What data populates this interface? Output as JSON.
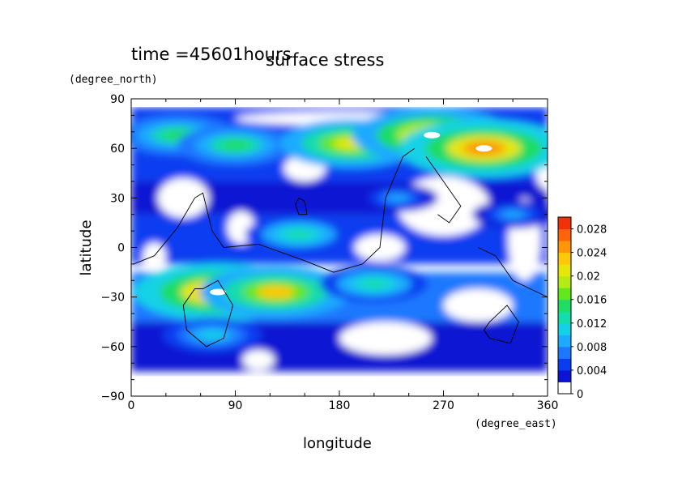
{
  "chart_data": {
    "type": "heatmap",
    "time_label": "time =45601hours",
    "title": "surface stress",
    "xlabel": "longitude",
    "ylabel": "latitude",
    "x_unit": "(degree_east)",
    "y_unit": "(degree_north)",
    "xlim": [
      0,
      360
    ],
    "ylim": [
      -90,
      90
    ],
    "x_ticks": [
      "0",
      "90",
      "180",
      "270",
      "360"
    ],
    "y_ticks": [
      "90",
      "60",
      "30",
      "0",
      "−30",
      "−60",
      "−90"
    ],
    "x_tick_values": [
      0,
      90,
      180,
      270,
      360
    ],
    "y_tick_values": [
      90,
      60,
      30,
      0,
      -30,
      -60,
      -90
    ],
    "grid": false,
    "colorbar": {
      "min": 0,
      "max": 0.03,
      "tick_values": [
        0,
        0.004,
        0.008,
        0.012,
        0.016,
        0.02,
        0.024,
        0.028
      ],
      "tick_labels": [
        "0",
        "0.004",
        "0.008",
        "0.012",
        "0.016",
        "0.02",
        "0.024",
        "0.028"
      ],
      "colors": [
        "#ffffff",
        "#0a14d2",
        "#0a3cf0",
        "#1e78ff",
        "#1eaaff",
        "#14d2e6",
        "#14dcaa",
        "#1edc64",
        "#64e61e",
        "#b4eb14",
        "#e6e60a",
        "#ffc80a",
        "#ff960a",
        "#ff640a",
        "#f0320a"
      ]
    },
    "series": [
      {
        "lon": 40,
        "lat": 68,
        "value": 0.016
      },
      {
        "lon": 90,
        "lat": 62,
        "value": 0.016
      },
      {
        "lon": 190,
        "lat": 63,
        "value": 0.022
      },
      {
        "lon": 260,
        "lat": 68,
        "value": 0.026
      },
      {
        "lon": 305,
        "lat": 60,
        "value": 0.028
      },
      {
        "lon": 75,
        "lat": -27,
        "value": 0.028
      },
      {
        "lon": 125,
        "lat": -27,
        "value": 0.024
      },
      {
        "lon": 210,
        "lat": -22,
        "value": 0.014
      },
      {
        "lon": 70,
        "lat": -53,
        "value": 0.012
      },
      {
        "lon": 145,
        "lat": 8,
        "value": 0.014
      },
      {
        "lon": 230,
        "lat": 30,
        "value": 0.008
      },
      {
        "lon": 330,
        "lat": 20,
        "value": 0.008
      }
    ]
  }
}
